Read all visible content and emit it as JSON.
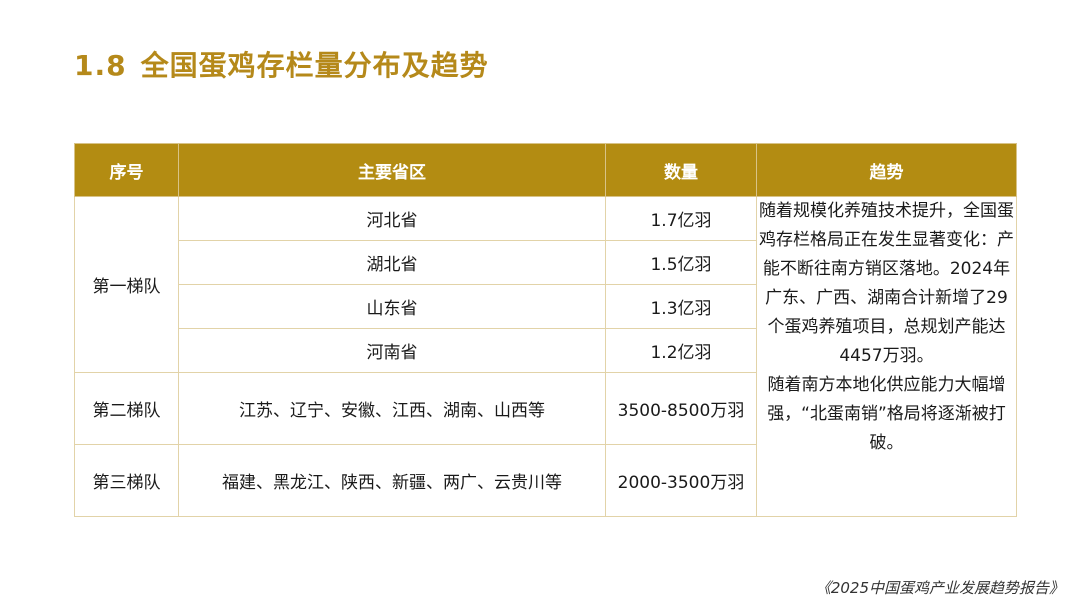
{
  "header": {
    "number": "1.8",
    "title": "全国蛋鸡存栏量分布及趋势"
  },
  "table": {
    "columns": [
      "序号",
      "主要省区",
      "数量",
      "趋势"
    ],
    "tier1": {
      "label": "第一梯队",
      "rows": [
        {
          "province": "河北省",
          "quantity": "1.7亿羽"
        },
        {
          "province": "湖北省",
          "quantity": "1.5亿羽"
        },
        {
          "province": "山东省",
          "quantity": "1.3亿羽"
        },
        {
          "province": "河南省",
          "quantity": "1.2亿羽"
        }
      ]
    },
    "tier2": {
      "label": "第二梯队",
      "provinces": "江苏、辽宁、安徽、江西、湖南、山西等",
      "quantity": "3500-8500万羽"
    },
    "tier3": {
      "label": "第三梯队",
      "provinces": "福建、黑龙江、陕西、新疆、两广、云贵川等",
      "quantity": "2000-3500万羽"
    },
    "trend": [
      "随着规模化养殖技术提升，全国蛋鸡存栏格局正在发生显著变化：产能不断往南方销区落地。2024年广东、广西、湖南合计新增了29个蛋鸡养殖项目，总规划产能达4457万羽。",
      "随着南方本地化供应能力大幅增强，“北蛋南销”格局将逐渐被打破。"
    ]
  },
  "footer": {
    "report": "《2025中国蛋鸡产业发展趋势报告》"
  }
}
